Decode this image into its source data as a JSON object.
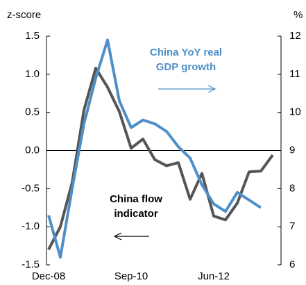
{
  "chart_data": {
    "type": "line",
    "y_label": "z-score",
    "y2_label": "%",
    "categories": [
      "Dec-08",
      null,
      null,
      null,
      null,
      null,
      null,
      "Sep-10",
      null,
      null,
      null,
      null,
      null,
      null,
      "Jun-12",
      null,
      null,
      null,
      null,
      null
    ],
    "ylim": [
      -1.5,
      1.5
    ],
    "yticks": [
      -1.5,
      {
        "value": -1,
        "label": "-1.0"
      },
      -0.5,
      {
        "value": 0,
        "label": "0.0"
      },
      0.5,
      {
        "value": 1,
        "label": "1.0"
      },
      1.5
    ],
    "y2lim": [
      6,
      12
    ],
    "y2ticks": [
      6,
      7,
      8,
      9,
      10,
      11,
      12
    ],
    "series": [
      {
        "name": "China flow indicator",
        "color": "#555555",
        "values": [
          -1.3,
          -1.0,
          -0.42,
          0.53,
          1.08,
          0.83,
          0.51,
          0.03,
          0.15,
          -0.12,
          -0.2,
          -0.16,
          -0.64,
          -0.3,
          -0.86,
          -0.91,
          -0.69,
          -0.28,
          -0.27,
          -0.06
        ]
      },
      {
        "name": "China YoY real GDP growth",
        "color": "#4f8fc8",
        "axis": "y2",
        "values": [
          7.3,
          6.2,
          8.0,
          9.7,
          10.9,
          11.9,
          10.3,
          9.6,
          9.8,
          9.7,
          9.5,
          9.1,
          8.8,
          8.1,
          7.6,
          7.4,
          7.9,
          7.7,
          7.5,
          null
        ]
      }
    ],
    "annotations": [
      {
        "lines": [
          "China YoY real",
          "GDP growth"
        ],
        "color": "#4f8fc8"
      },
      {
        "lines": [
          "China flow",
          "indicator"
        ],
        "color": "#000000"
      }
    ]
  }
}
